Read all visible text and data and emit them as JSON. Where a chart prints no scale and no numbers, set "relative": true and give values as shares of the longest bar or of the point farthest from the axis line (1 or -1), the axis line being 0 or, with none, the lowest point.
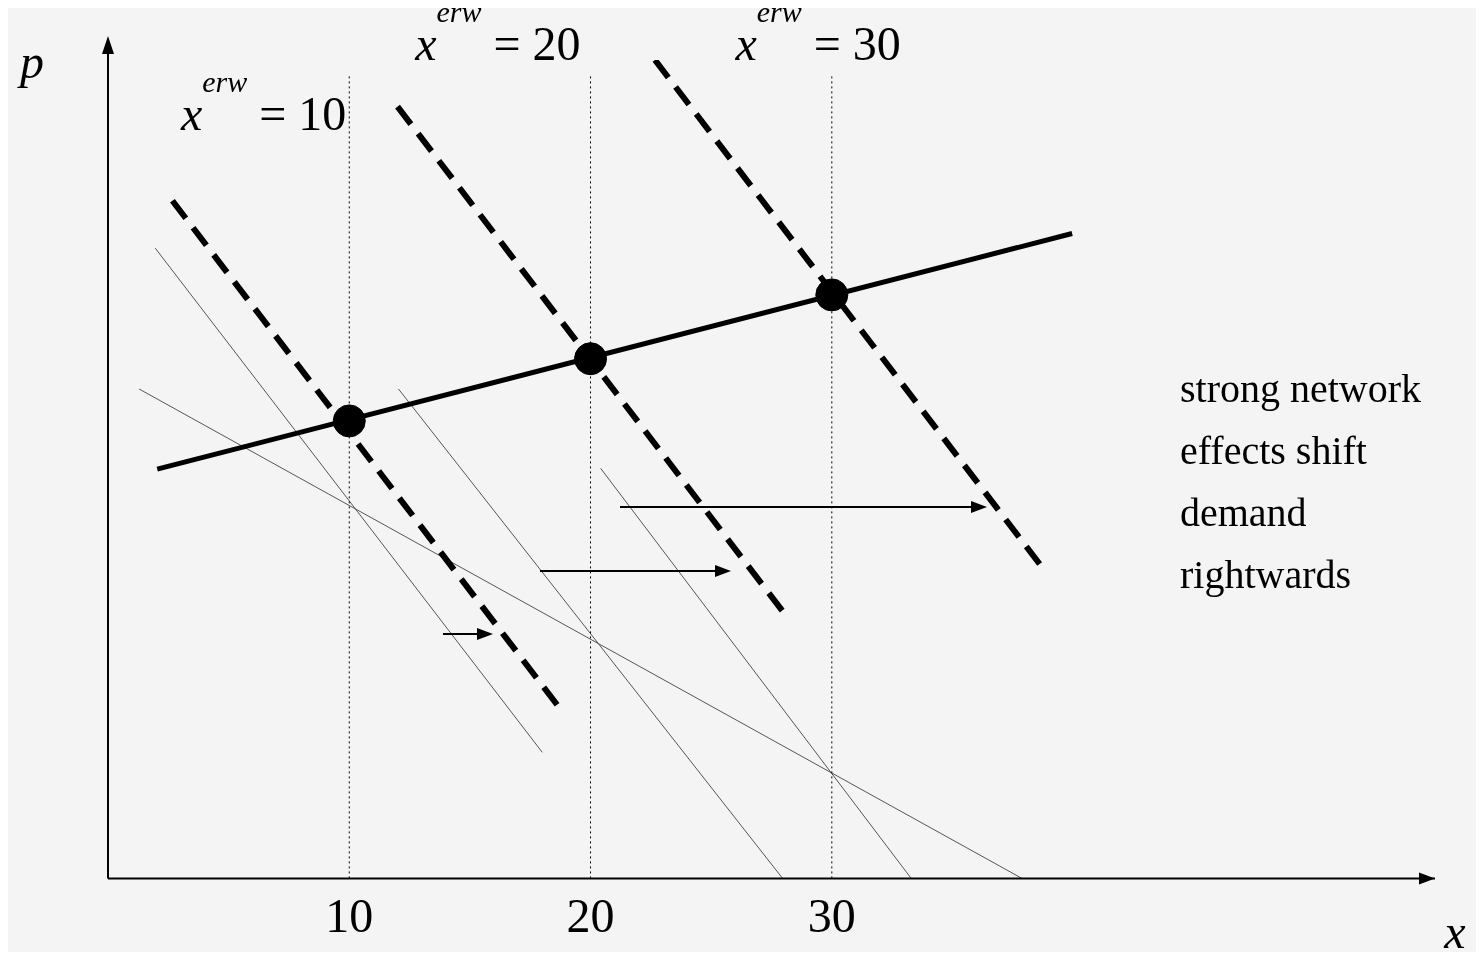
{
  "chart_data": {
    "type": "line",
    "relative": true,
    "xlabel": "x",
    "ylabel": "p",
    "xlim": [
      0,
      55
    ],
    "xticks": [
      10,
      20,
      30
    ],
    "tick_labels": "x",
    "legend": false,
    "series": [
      {
        "color": "#000000",
        "line_style": "solid",
        "x": [
          2.04,
          39.96
        ],
        "values": [
          0.5,
          0.788
        ]
      },
      {
        "color": "#000000",
        "line_style": "dashed",
        "x": [
          2.67,
          18.67
        ],
        "values": [
          0.828,
          0.21
        ]
      },
      {
        "color": "#000000",
        "line_style": "dashed",
        "x": [
          12,
          28
        ],
        "values": [
          0.943,
          0.325
        ]
      },
      {
        "color": "#000000",
        "line_style": "dashed",
        "x": [
          22.67,
          38.67
        ],
        "values": [
          1,
          0.382
        ]
      },
      {
        "color": "#555555",
        "line_style": "solid",
        "x": [
          1.96,
          18
        ],
        "values": [
          0.77,
          0.154
        ]
      },
      {
        "color": "#555555",
        "line_style": "solid",
        "x": [
          12.04,
          27.96
        ],
        "values": [
          0.598,
          0
        ]
      },
      {
        "color": "#555555",
        "line_style": "solid",
        "x": [
          20.42,
          33.29
        ],
        "values": [
          0.501,
          0
        ]
      },
      {
        "color": "#555555",
        "line_style": "solid",
        "x": [
          1.29,
          37.88
        ],
        "values": [
          0.598,
          0
        ]
      },
      {
        "type": "scatter",
        "color": "#000000",
        "marker": "circle",
        "x": [
          10,
          20,
          30
        ],
        "values": [
          0.559,
          0.635,
          0.713
        ]
      }
    ],
    "ref_lines": [
      {
        "axis": "x",
        "value": 10,
        "label": "x$^{erw}$ = 10",
        "line_style": "dotted",
        "color": "#000000"
      },
      {
        "axis": "x",
        "value": 20,
        "label": "x$^{erw}$ = 20",
        "line_style": "dotted",
        "color": "#000000"
      },
      {
        "axis": "x",
        "value": 30,
        "label": "x$^{erw}$ = 30",
        "line_style": "dotted",
        "color": "#000000"
      }
    ],
    "annotations": [
      "strong network effects shift demand rightwards"
    ]
  }
}
